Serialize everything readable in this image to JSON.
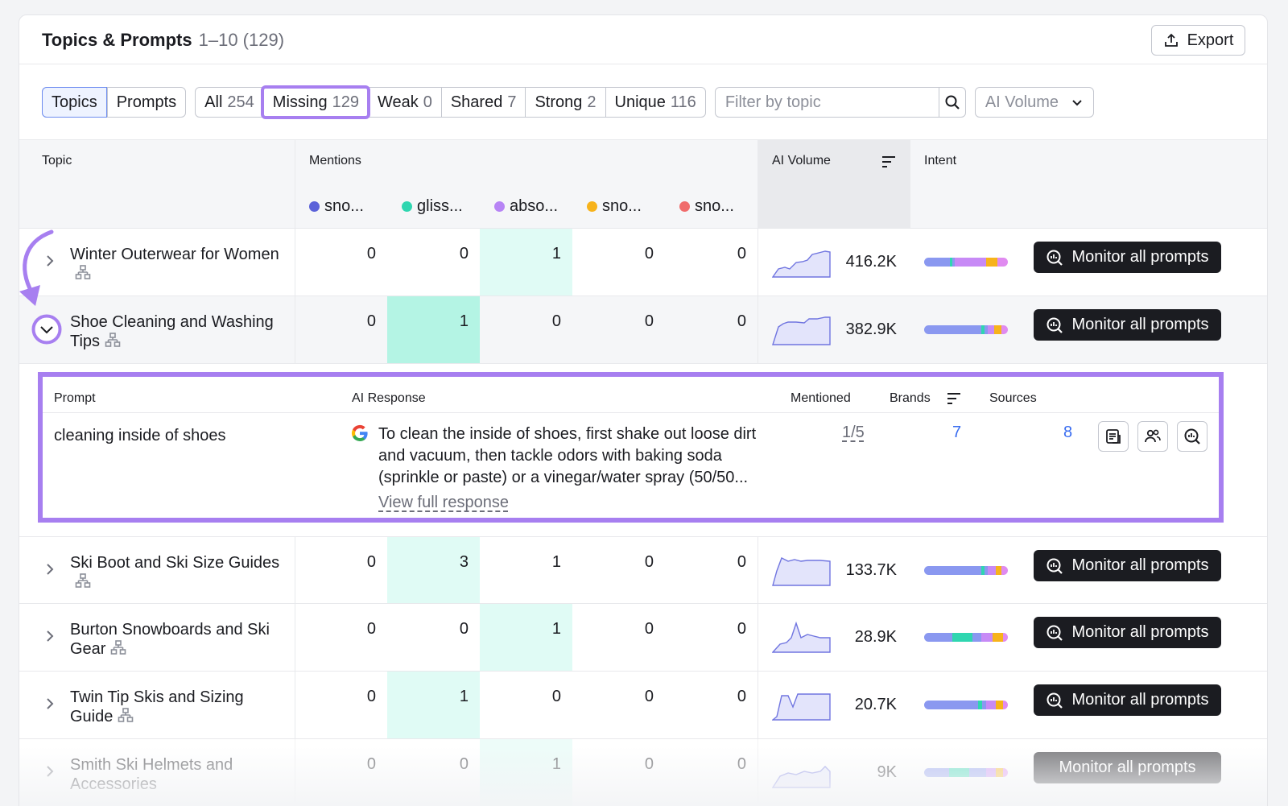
{
  "header": {
    "title": "Topics & Prompts",
    "range": "1–10 (129)",
    "export_label": "Export"
  },
  "tabs": {
    "topics": "Topics",
    "prompts": "Prompts"
  },
  "filters": [
    {
      "label": "All",
      "count": "254"
    },
    {
      "label": "Missing",
      "count": "129"
    },
    {
      "label": "Weak",
      "count": "0"
    },
    {
      "label": "Shared",
      "count": "7"
    },
    {
      "label": "Strong",
      "count": "2"
    },
    {
      "label": "Unique",
      "count": "116"
    }
  ],
  "search": {
    "placeholder": "Filter by topic"
  },
  "volume_select": {
    "label": "AI Volume"
  },
  "columns": {
    "topic": "Topic",
    "mentions": "Mentions",
    "ai_volume": "AI Volume",
    "intent": "Intent"
  },
  "brands": [
    {
      "name": "sno...",
      "color": "#5b62d9"
    },
    {
      "name": "gliss...",
      "color": "#2fd6b0"
    },
    {
      "name": "abso...",
      "color": "#b784f5"
    },
    {
      "name": "sno...",
      "color": "#f7b31b"
    },
    {
      "name": "sno...",
      "color": "#f06c6c"
    }
  ],
  "rows": [
    {
      "topic": "Winter Outerwear for Women",
      "mentions": [
        "0",
        "0",
        "1",
        "0",
        "0"
      ],
      "volume": "416.2K",
      "monitor": "Monitor all prompts"
    },
    {
      "topic": "Shoe Cleaning and Washing Tips",
      "mentions": [
        "0",
        "1",
        "0",
        "0",
        "0"
      ],
      "volume": "382.9K",
      "monitor": "Monitor all prompts"
    },
    {
      "topic": "Ski Boot and Ski Size Guides",
      "mentions": [
        "0",
        "3",
        "1",
        "0",
        "0"
      ],
      "volume": "133.7K",
      "monitor": "Monitor all prompts"
    },
    {
      "topic": "Burton Snowboards and Ski Gear",
      "mentions": [
        "0",
        "0",
        "1",
        "0",
        "0"
      ],
      "volume": "28.9K",
      "monitor": "Monitor all prompts"
    },
    {
      "topic": "Twin Tip Skis and Sizing Guide",
      "mentions": [
        "0",
        "1",
        "0",
        "0",
        "0"
      ],
      "volume": "20.7K",
      "monitor": "Monitor all prompts"
    },
    {
      "topic": "Smith Ski Helmets and Accessories",
      "mentions": [
        "0",
        "0",
        "1",
        "0",
        "0"
      ],
      "volume": "9K",
      "monitor": "Monitor all prompts"
    }
  ],
  "expanded": {
    "headers": {
      "prompt": "Prompt",
      "ai_response": "AI Response",
      "mentioned": "Mentioned",
      "brands": "Brands",
      "sources": "Sources"
    },
    "prompt": "cleaning inside of shoes",
    "response": "To clean the inside of shoes, first shake out loose dirt and vacuum, then tackle odors with baking soda (sprinkle or paste) or a vinegar/water spray (50/50...",
    "view_full": "View full response",
    "mentioned": "1/5",
    "brands_count": "7",
    "sources_count": "8"
  },
  "colors": {
    "accent_highlight": "#a77ff0",
    "mention_highlight": "#e0fbf5",
    "link": "#3a6df0"
  }
}
